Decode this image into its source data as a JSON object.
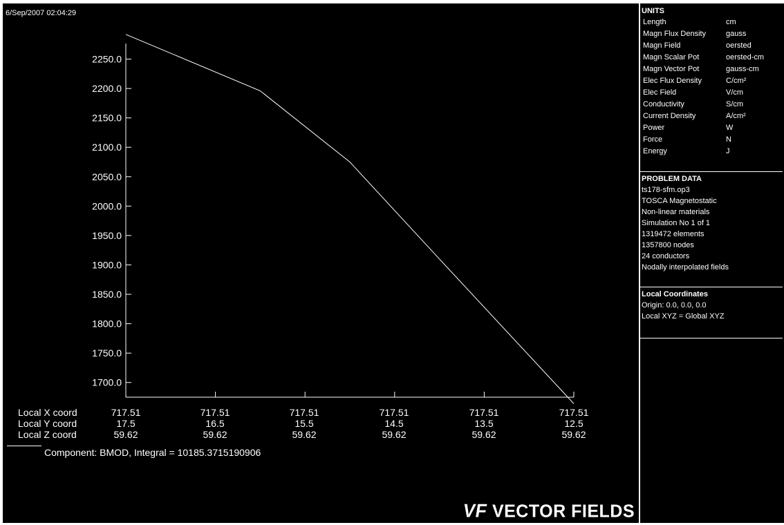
{
  "timestamp": "6/Sep/2007 02:04:29",
  "chart_data": {
    "type": "line",
    "x": [
      17.5,
      16.5,
      15.5,
      14.5,
      13.5,
      12.5
    ],
    "y_ticks": [
      "2250.0",
      "2200.0",
      "2150.0",
      "2100.0",
      "2050.0",
      "2000.0",
      "1950.0",
      "1900.0",
      "1850.0",
      "1800.0",
      "1750.0",
      "1700.0"
    ],
    "ylim": [
      1675,
      2300
    ],
    "points": [
      {
        "y": 17.5,
        "v": 2292
      },
      {
        "y": 16.0,
        "v": 2196
      },
      {
        "y": 15.0,
        "v": 2075
      },
      {
        "y": 14.0,
        "v": 1910
      },
      {
        "y": 12.5,
        "v": 1664
      }
    ],
    "series": [
      {
        "name": "BMOD"
      }
    ],
    "color": "#ffffff"
  },
  "coords": {
    "labels": [
      "Local X coord",
      "Local Y coord",
      "Local Z coord"
    ],
    "x_vals": [
      "717.51",
      "717.51",
      "717.51",
      "717.51",
      "717.51",
      "717.51"
    ],
    "y_vals": [
      "17.5",
      "16.5",
      "15.5",
      "14.5",
      "13.5",
      "12.5"
    ],
    "z_vals": [
      "59.62",
      "59.62",
      "59.62",
      "59.62",
      "59.62",
      "59.62"
    ]
  },
  "component_text": "Component:  BMOD, Integral =  10185.3715190906",
  "logo": {
    "mark": "VF",
    "text": "VECTOR FIELDS"
  },
  "units": {
    "title": "UNITS",
    "rows": [
      {
        "name": "Length",
        "value": "cm"
      },
      {
        "name": "Magn Flux Density",
        "value": "gauss"
      },
      {
        "name": "Magn Field",
        "value": "oersted"
      },
      {
        "name": "Magn Scalar Pot",
        "value": "oersted-cm"
      },
      {
        "name": "Magn Vector Pot",
        "value": "gauss-cm"
      },
      {
        "name": "Elec Flux Density",
        "value": "C/cm²"
      },
      {
        "name": "Elec Field",
        "value": "V/cm"
      },
      {
        "name": "Conductivity",
        "value": "S/cm"
      },
      {
        "name": "Current Density",
        "value": "A/cm²"
      },
      {
        "name": "Power",
        "value": "W"
      },
      {
        "name": "Force",
        "value": "N"
      },
      {
        "name": "Energy",
        "value": "J"
      }
    ]
  },
  "problem": {
    "title": "PROBLEM DATA",
    "lines": [
      "ts178-sfm.op3",
      "TOSCA Magnetostatic",
      "Non-linear materials",
      "Simulation No 1 of 1",
      "1319472 elements",
      "1357800 nodes",
      "24 conductors",
      "Nodally interpolated fields"
    ]
  },
  "local": {
    "title": "Local Coordinates",
    "lines": [
      "Origin: 0.0, 0.0, 0.0",
      "Local XYZ = Global XYZ"
    ]
  }
}
